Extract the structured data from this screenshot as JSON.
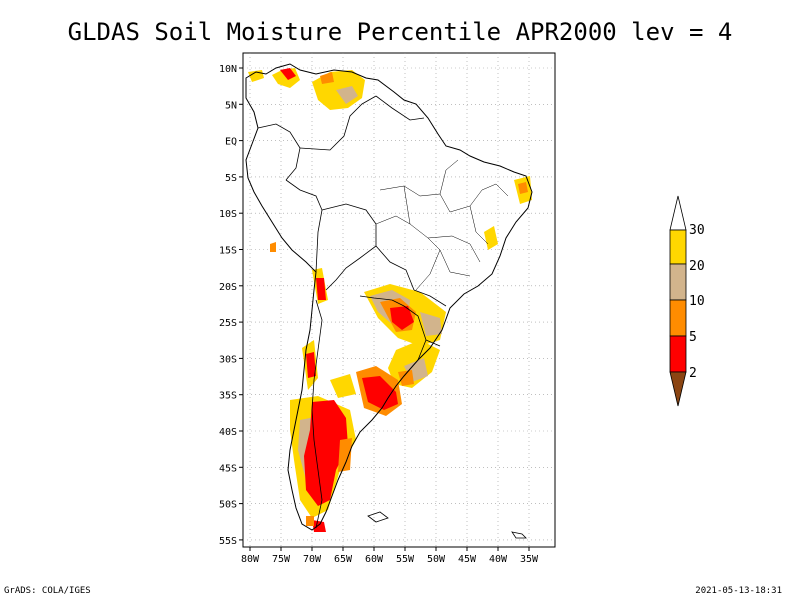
{
  "title": "GLDAS Soil Moisture Percentile APR2000 lev = 4",
  "footer": {
    "left": "GrADS: COLA/IGES",
    "right": "2021-05-13-18:31"
  },
  "axes": {
    "lat_labels": [
      "10N",
      "5N",
      "EQ",
      "5S",
      "10S",
      "15S",
      "20S",
      "25S",
      "30S",
      "35S",
      "40S",
      "45S",
      "50S",
      "55S"
    ],
    "lon_labels": [
      "80W",
      "75W",
      "70W",
      "65W",
      "60W",
      "55W",
      "50W",
      "45W",
      "40W",
      "35W"
    ]
  },
  "legend": {
    "labels": [
      "2",
      "5",
      "10",
      "20",
      "30"
    ],
    "colors": {
      "below_2": "#8b4513",
      "2_5": "#ff0000",
      "5_10": "#ff8c00",
      "10_20": "#d2b48c",
      "20_30": "#ffd700",
      "above_30": "#ffffff"
    }
  },
  "chart_data": {
    "type": "heatmap",
    "title": "GLDAS Soil Moisture Percentile APR2000 lev = 4",
    "region": "South America",
    "lon_range": [
      -81,
      -33
    ],
    "lat_range": [
      -56,
      12
    ],
    "contour_levels": [
      2,
      5,
      10,
      20,
      30
    ],
    "grid": true
  }
}
